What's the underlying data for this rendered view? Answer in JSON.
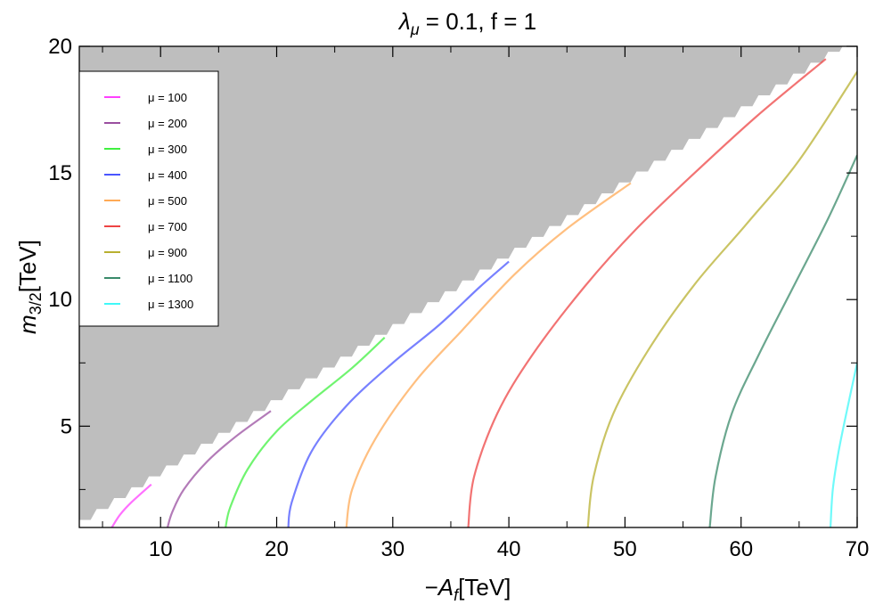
{
  "chart_data": {
    "type": "line",
    "title": "λ_μ = 0.1, f = 1",
    "title_parts": {
      "symbol": "λ",
      "sub": "μ",
      "rest": " = 0.1, f = 1"
    },
    "xlabel": "−A_f[TeV]",
    "xlabel_parts": {
      "minus": "−",
      "symbol": "A",
      "sub": "f",
      "unit": "[TeV]"
    },
    "ylabel": "m_3/2[TeV]",
    "ylabel_parts": {
      "symbol": "m",
      "sub": "3/2",
      "unit": "[TeV]"
    },
    "xlim": [
      3,
      70
    ],
    "ylim": [
      1,
      20
    ],
    "xticks": [
      10,
      20,
      30,
      40,
      50,
      60,
      70
    ],
    "yticks": [
      5,
      10,
      15,
      20
    ],
    "grid": false,
    "legend_placement": "top-left",
    "excluded_region": {
      "color": "#bebebe",
      "boundary": [
        [
          3,
          1.3
        ],
        [
          70,
          20.5
        ]
      ]
    },
    "series": [
      {
        "name": "μ = 100",
        "color": "#ff40ff",
        "points": [
          [
            5.8,
            1.0
          ],
          [
            6.5,
            1.5
          ],
          [
            7.5,
            2.0
          ],
          [
            9.2,
            2.7
          ]
        ]
      },
      {
        "name": "μ = 200",
        "color": "#9a4fa0",
        "points": [
          [
            10.6,
            1.0
          ],
          [
            11.0,
            1.6
          ],
          [
            12.0,
            2.5
          ],
          [
            14.0,
            3.6
          ],
          [
            16.5,
            4.6
          ],
          [
            19.5,
            5.6
          ]
        ]
      },
      {
        "name": "μ = 300",
        "color": "#40f040",
        "points": [
          [
            15.6,
            1.0
          ],
          [
            16.0,
            1.8
          ],
          [
            17.5,
            3.3
          ],
          [
            20.0,
            4.8
          ],
          [
            23.0,
            6.0
          ],
          [
            26.5,
            7.3
          ],
          [
            29.3,
            8.5
          ]
        ]
      },
      {
        "name": "μ = 400",
        "color": "#4a55ff",
        "points": [
          [
            21.0,
            1.0
          ],
          [
            21.3,
            2.0
          ],
          [
            23.0,
            4.0
          ],
          [
            26.0,
            5.8
          ],
          [
            30.0,
            7.5
          ],
          [
            34.0,
            9.0
          ],
          [
            37.5,
            10.5
          ],
          [
            40.0,
            11.5
          ]
        ]
      },
      {
        "name": "μ = 500",
        "color": "#ffaa55",
        "points": [
          [
            26.0,
            1.0
          ],
          [
            26.5,
            2.5
          ],
          [
            28.5,
            4.5
          ],
          [
            32.0,
            6.8
          ],
          [
            36.0,
            8.8
          ],
          [
            40.5,
            11.0
          ],
          [
            45.0,
            12.8
          ],
          [
            50.5,
            14.6
          ]
        ]
      },
      {
        "name": "μ = 700",
        "color": "#ee4444",
        "points": [
          [
            36.5,
            1.0
          ],
          [
            37.0,
            3.0
          ],
          [
            39.0,
            5.5
          ],
          [
            42.0,
            7.8
          ],
          [
            46.5,
            10.5
          ],
          [
            51.0,
            12.8
          ],
          [
            56.0,
            15.0
          ],
          [
            61.5,
            17.3
          ],
          [
            67.3,
            19.5
          ]
        ]
      },
      {
        "name": "μ = 900",
        "color": "#b8b030",
        "points": [
          [
            46.8,
            1.0
          ],
          [
            47.3,
            3.0
          ],
          [
            49.0,
            5.5
          ],
          [
            52.0,
            8.0
          ],
          [
            56.0,
            10.6
          ],
          [
            60.5,
            13.0
          ],
          [
            65.0,
            15.5
          ],
          [
            70.0,
            19.0
          ]
        ]
      },
      {
        "name": "μ = 1100",
        "color": "#3a8a6a",
        "points": [
          [
            57.3,
            1.0
          ],
          [
            57.8,
            3.0
          ],
          [
            59.2,
            5.5
          ],
          [
            61.5,
            7.8
          ],
          [
            64.5,
            10.5
          ],
          [
            67.5,
            13.2
          ],
          [
            70.0,
            15.7
          ]
        ]
      },
      {
        "name": "μ = 1300",
        "color": "#40f8f8",
        "points": [
          [
            67.7,
            1.0
          ],
          [
            67.9,
            2.5
          ],
          [
            68.4,
            4.0
          ],
          [
            69.2,
            5.8
          ],
          [
            70.0,
            7.5
          ]
        ]
      }
    ]
  }
}
